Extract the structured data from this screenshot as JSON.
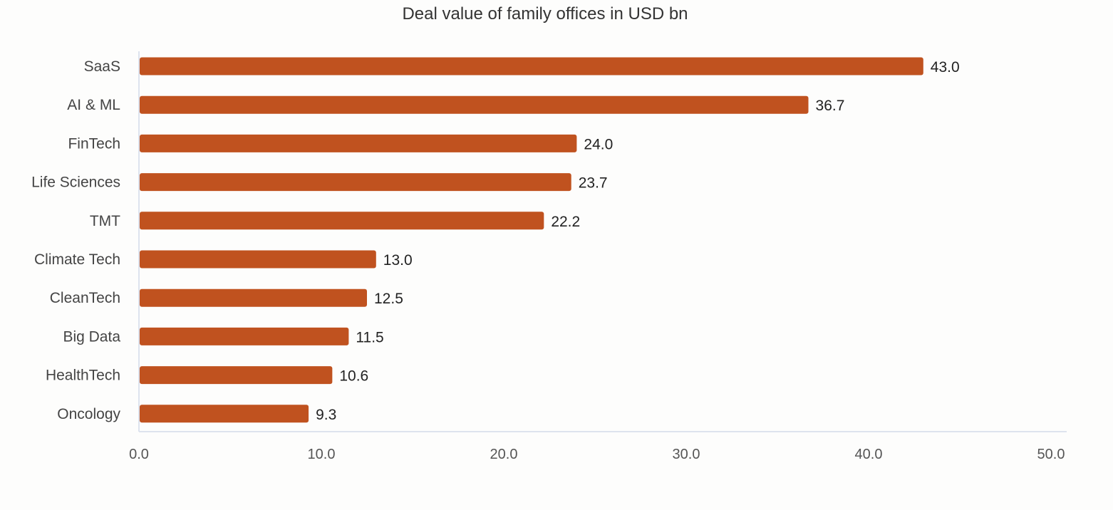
{
  "chart_data": {
    "type": "bar",
    "orientation": "horizontal",
    "title": "Deal value of family offices in USD bn",
    "xlabel": "",
    "ylabel": "",
    "categories": [
      "SaaS",
      "AI & ML",
      "FinTech",
      "Life Sciences",
      "TMT",
      "Climate Tech",
      "CleanTech",
      "Big Data",
      "HealthTech",
      "Oncology"
    ],
    "values": [
      43.0,
      36.7,
      24.0,
      23.7,
      22.2,
      13.0,
      12.5,
      11.5,
      10.6,
      9.3
    ],
    "value_labels": [
      "43.0",
      "36.7",
      "24.0",
      "23.7",
      "22.2",
      "13.0",
      "12.5",
      "11.5",
      "10.6",
      "9.3"
    ],
    "xlim": [
      0,
      50
    ],
    "x_ticks": [
      0,
      10,
      20,
      30,
      40,
      50
    ],
    "x_tick_labels": [
      "0.0",
      "10.0",
      "20.0",
      "30.0",
      "40.0",
      "50.0"
    ],
    "grid": false,
    "legend": "none",
    "bar_color": "#c0521f",
    "axis_color": "#dde3ee"
  }
}
